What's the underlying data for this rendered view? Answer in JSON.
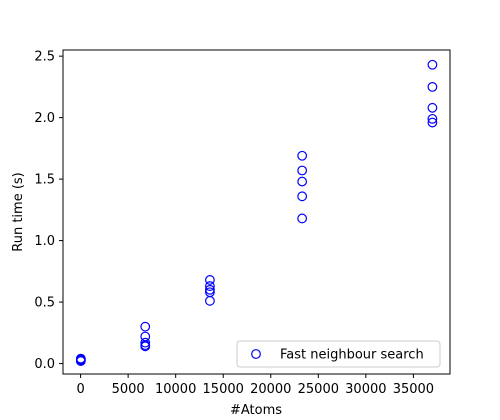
{
  "chart_data": {
    "type": "scatter",
    "title": "",
    "xlabel": "#Atoms",
    "ylabel": "Run time (s)",
    "xlim": [
      -1850,
      38850
    ],
    "ylim": [
      -0.085,
      2.55
    ],
    "xticks": [
      0,
      5000,
      10000,
      15000,
      20000,
      25000,
      30000,
      35000
    ],
    "yticks": [
      0.0,
      0.5,
      1.0,
      1.5,
      2.0,
      2.5
    ],
    "xtick_labels": [
      "0",
      "5000",
      "10000",
      "15000",
      "20000",
      "25000",
      "30000",
      "35000"
    ],
    "ytick_labels": [
      "0.0",
      "0.5",
      "1.0",
      "1.5",
      "2.0",
      "2.5"
    ],
    "grid": false,
    "legend_position": "lower-right",
    "series": [
      {
        "name": "Fast neighbour search",
        "marker": "open-circle",
        "color": "#0000ff",
        "points": [
          [
            24,
            0.02
          ],
          [
            24,
            0.03
          ],
          [
            24,
            0.04
          ],
          [
            24,
            0.025
          ],
          [
            24,
            0.035
          ],
          [
            6800,
            0.3
          ],
          [
            6800,
            0.22
          ],
          [
            6800,
            0.17
          ],
          [
            6800,
            0.15
          ],
          [
            6800,
            0.14
          ],
          [
            13600,
            0.68
          ],
          [
            13600,
            0.63
          ],
          [
            13600,
            0.6
          ],
          [
            13600,
            0.58
          ],
          [
            13600,
            0.51
          ],
          [
            23300,
            1.69
          ],
          [
            23300,
            1.57
          ],
          [
            23300,
            1.48
          ],
          [
            23300,
            1.36
          ],
          [
            23300,
            1.18
          ],
          [
            37000,
            2.43
          ],
          [
            37000,
            2.25
          ],
          [
            37000,
            2.08
          ],
          [
            37000,
            1.99
          ],
          [
            37000,
            1.96
          ]
        ]
      }
    ]
  }
}
